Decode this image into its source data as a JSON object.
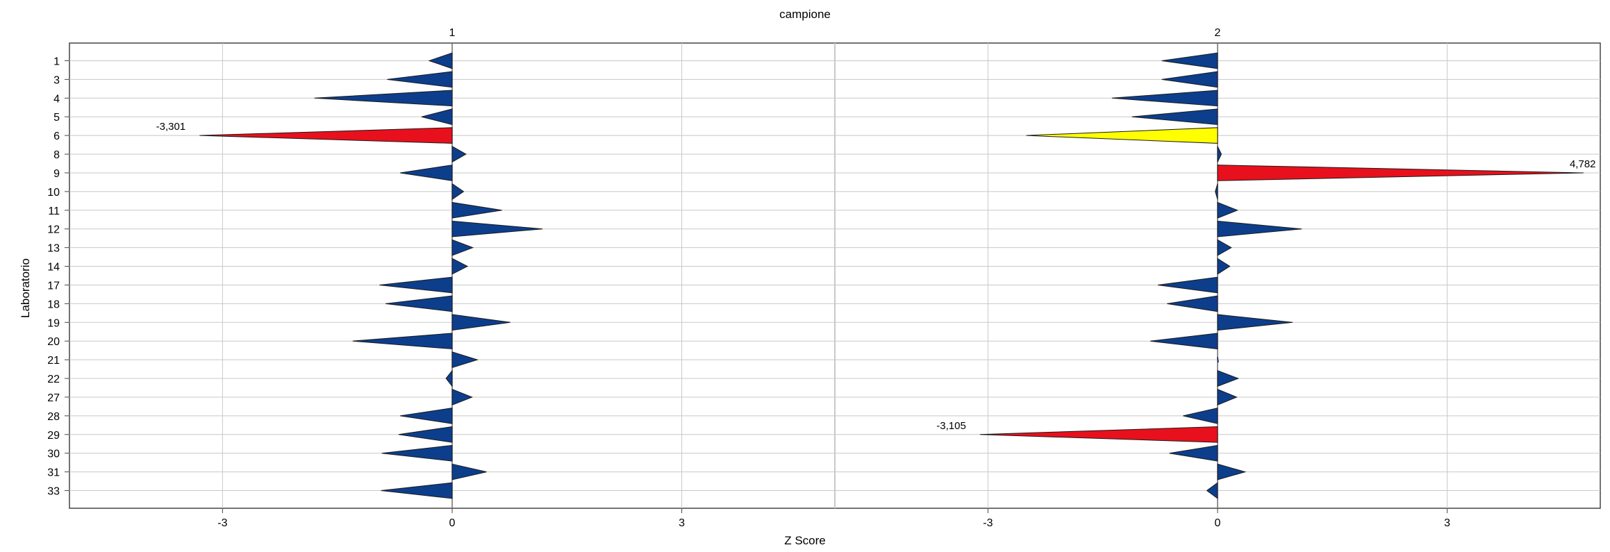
{
  "chart_data": {
    "type": "bar",
    "orientation": "horizontal",
    "title": "campione",
    "xlabel": "Z Score",
    "ylabel": "Laboratorio",
    "grid": true,
    "legend": "none",
    "xlim_per_panel": [
      -5,
      5
    ],
    "x_ticks_panel_1": [
      "-3",
      "0",
      "3"
    ],
    "x_ticks_panel_2": [
      "-3",
      "0",
      "3"
    ],
    "categories": [
      "1",
      "3",
      "4",
      "5",
      "6",
      "8",
      "9",
      "10",
      "11",
      "12",
      "13",
      "14",
      "17",
      "18",
      "19",
      "20",
      "21",
      "22",
      "27",
      "28",
      "29",
      "30",
      "31",
      "33"
    ],
    "colors": {
      "normal": "#0c3e8c",
      "warning": "#ffff00",
      "action": "#e8101c",
      "grid": "#c8c8c8",
      "axis": "#444444"
    },
    "panels": [
      {
        "name": "1",
        "values": [
          -0.3,
          -0.85,
          -1.8,
          -0.4,
          -3.301,
          0.18,
          -0.68,
          0.15,
          0.65,
          1.18,
          0.27,
          0.2,
          -0.95,
          -0.87,
          0.76,
          -1.3,
          0.33,
          -0.08,
          0.26,
          -0.68,
          -0.7,
          -0.92,
          0.45,
          -0.93
        ],
        "status": [
          "normal",
          "normal",
          "normal",
          "normal",
          "action",
          "normal",
          "normal",
          "normal",
          "normal",
          "normal",
          "normal",
          "normal",
          "normal",
          "normal",
          "normal",
          "normal",
          "normal",
          "normal",
          "normal",
          "normal",
          "normal",
          "normal",
          "normal",
          "normal"
        ],
        "annotations": [
          {
            "category": "6",
            "label": "-3,301"
          }
        ]
      },
      {
        "name": "2",
        "values": [
          -0.73,
          -0.73,
          -1.38,
          -1.12,
          -2.5,
          0.05,
          4.782,
          -0.03,
          0.26,
          1.1,
          0.18,
          0.16,
          -0.78,
          -0.66,
          0.98,
          -0.88,
          0.0,
          0.27,
          0.25,
          -0.45,
          -3.105,
          -0.63,
          0.36,
          -0.14
        ],
        "status": [
          "normal",
          "normal",
          "normal",
          "normal",
          "warning",
          "normal",
          "action",
          "normal",
          "normal",
          "normal",
          "normal",
          "normal",
          "normal",
          "normal",
          "normal",
          "normal",
          "normal",
          "normal",
          "normal",
          "normal",
          "action",
          "normal",
          "normal",
          "normal"
        ],
        "annotations": [
          {
            "category": "9",
            "label": "4,782"
          },
          {
            "category": "29",
            "label": "-3,105"
          }
        ]
      }
    ]
  }
}
